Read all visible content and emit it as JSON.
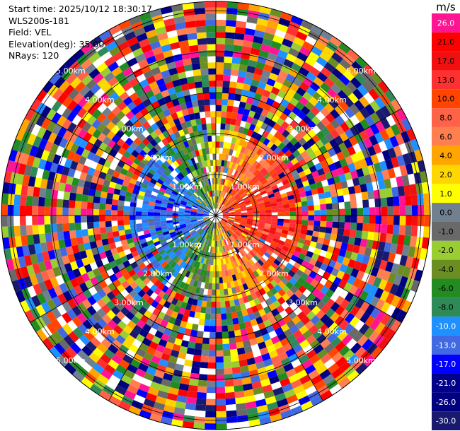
{
  "header": {
    "start_time": "Start time: 2025/10/12 18:30:17",
    "station": "WLS200s-181",
    "field": "Field: VEL",
    "elevation": "Elevation(deg): 35.00",
    "nrays": "NRays: 120"
  },
  "chart_data": {
    "type": "heatmap",
    "projection": "polar-ppi",
    "field": "VEL",
    "n_rays": 120,
    "range_ring_labels": [
      "1.00km",
      "2.00km",
      "3.00km",
      "4.00km",
      "5.00km"
    ],
    "range_rings_km": [
      1,
      2,
      3,
      4,
      5
    ],
    "colorbar": {
      "unit": "m/s",
      "tick_labels": [
        "26.0",
        "21.0",
        "17.0",
        "13.0",
        "10.0",
        "8.0",
        "6.0",
        "4.0",
        "2.0",
        "1.0",
        "0.0",
        "-1.0",
        "-2.0",
        "-4.0",
        "-6.0",
        "-8.0",
        "-10.0",
        "-13.0",
        "-17.0",
        "-21.0",
        "-26.0",
        "-30.0"
      ],
      "colors": [
        "#ff1493",
        "#ff0000",
        "#f01010",
        "#ff3030",
        "#ff4500",
        "#ff6347",
        "#ff7f50",
        "#ffa500",
        "#ffd700",
        "#ffff00",
        "#708090",
        "#696969",
        "#9acd32",
        "#6b8e23",
        "#228b22",
        "#2e8b57",
        "#1e90ff",
        "#4169e1",
        "#0000ff",
        "#00008b",
        "#000080",
        "#191970"
      ]
    }
  }
}
